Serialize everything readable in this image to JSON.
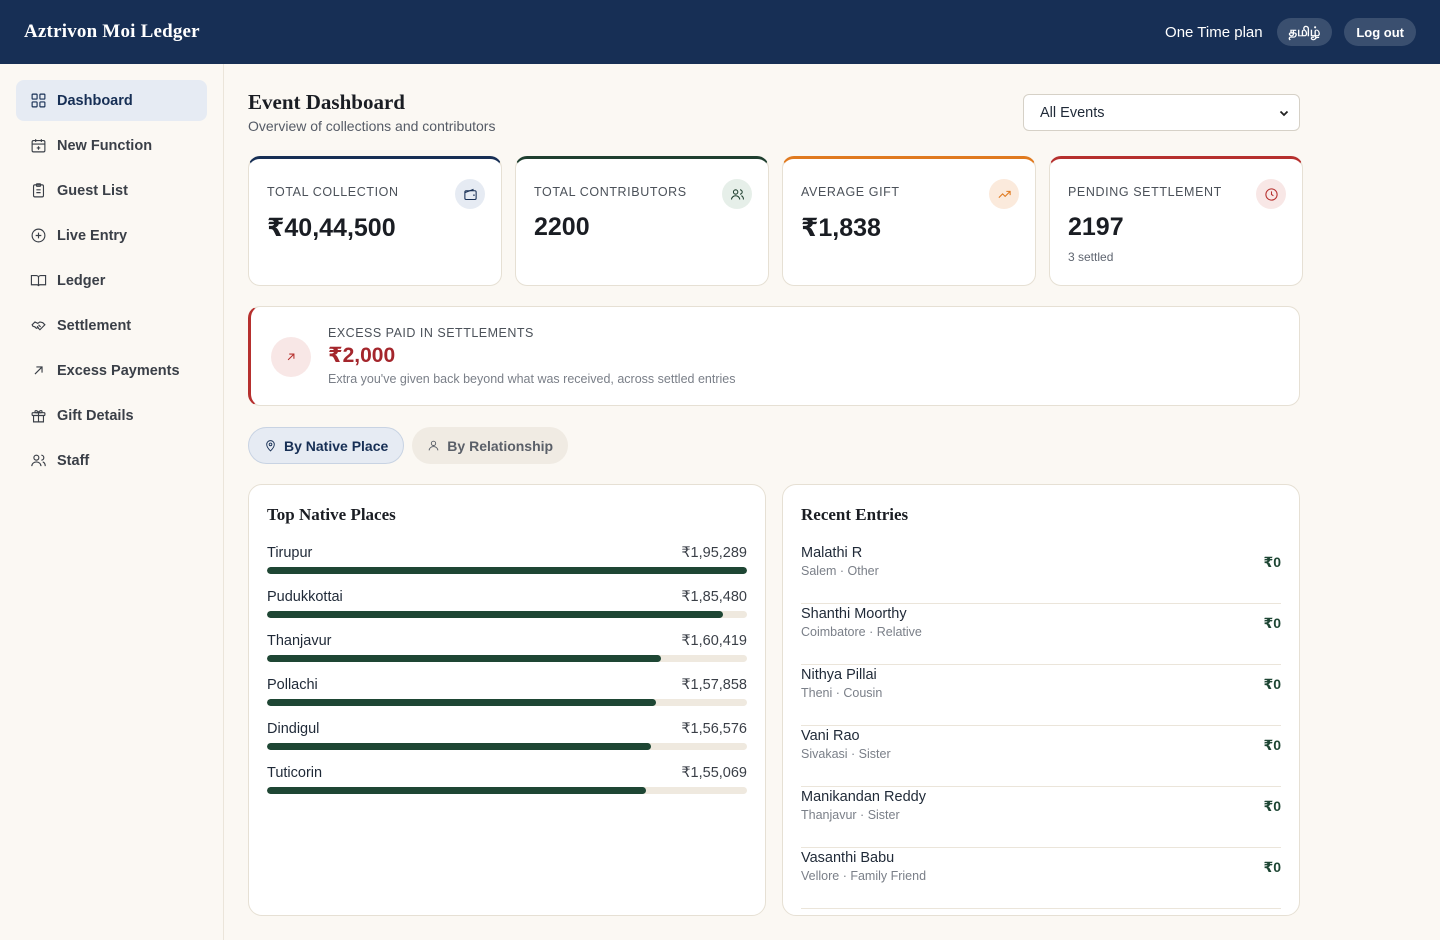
{
  "app": {
    "brand": "Aztrivon Moi Ledger",
    "plan": "One Time plan",
    "language_button": "தமிழ்",
    "logout_button": "Log out"
  },
  "sidebar": {
    "items": [
      {
        "label": "Dashboard",
        "icon": "grid-icon",
        "active": true
      },
      {
        "label": "New Function",
        "icon": "calendar-plus-icon"
      },
      {
        "label": "Guest List",
        "icon": "clipboard-icon"
      },
      {
        "label": "Live Entry",
        "icon": "plus-circle-icon"
      },
      {
        "label": "Ledger",
        "icon": "book-icon"
      },
      {
        "label": "Settlement",
        "icon": "handshake-icon"
      },
      {
        "label": "Excess Payments",
        "icon": "arrow-up-right-icon"
      },
      {
        "label": "Gift Details",
        "icon": "gift-icon"
      },
      {
        "label": "Staff",
        "icon": "users-icon"
      }
    ]
  },
  "header": {
    "title": "Event Dashboard",
    "subtitle": "Overview of collections and contributors",
    "event_select": "All Events"
  },
  "stats": [
    {
      "label": "TOTAL COLLECTION",
      "value": "₹40,44,500",
      "sub": "",
      "icon": "wallet-icon",
      "color": "#172f55"
    },
    {
      "label": "TOTAL CONTRIBUTORS",
      "value": "2200",
      "sub": "",
      "icon": "users-icon",
      "color": "#1f3f2f"
    },
    {
      "label": "AVERAGE GIFT",
      "value": "₹1,838",
      "sub": "",
      "icon": "trending-up-icon",
      "color": "#e07a1f"
    },
    {
      "label": "PENDING SETTLEMENT",
      "value": "2197",
      "sub": "3 settled",
      "icon": "clock-icon",
      "color": "#b6302e"
    }
  ],
  "excess": {
    "label": "EXCESS PAID IN SETTLEMENTS",
    "value": "₹2,000",
    "note": "Extra you've given back beyond what was received, across settled entries"
  },
  "toggles": [
    {
      "label": "By Native Place",
      "active": true
    },
    {
      "label": "By Relationship",
      "active": false
    }
  ],
  "native_places": {
    "title": "Top Native Places",
    "items": [
      {
        "name": "Tirupur",
        "amount": "₹1,95,289",
        "fraction": 1.0
      },
      {
        "name": "Pudukkottai",
        "amount": "₹1,85,480",
        "fraction": 0.95
      },
      {
        "name": "Thanjavur",
        "amount": "₹1,60,419",
        "fraction": 0.82
      },
      {
        "name": "Pollachi",
        "amount": "₹1,57,858",
        "fraction": 0.81
      },
      {
        "name": "Dindigul",
        "amount": "₹1,56,576",
        "fraction": 0.8
      },
      {
        "name": "Tuticorin",
        "amount": "₹1,55,069",
        "fraction": 0.79
      }
    ]
  },
  "recent_entries": {
    "title": "Recent Entries",
    "items": [
      {
        "name": "Malathi R",
        "meta": "Salem · Other",
        "amount": "₹0"
      },
      {
        "name": "Shanthi Moorthy",
        "meta": "Coimbatore · Relative",
        "amount": "₹0"
      },
      {
        "name": "Nithya Pillai",
        "meta": "Theni · Cousin",
        "amount": "₹0"
      },
      {
        "name": "Vani Rao",
        "meta": "Sivakasi · Sister",
        "amount": "₹0"
      },
      {
        "name": "Manikandan Reddy",
        "meta": "Thanjavur · Sister",
        "amount": "₹0"
      },
      {
        "name": "Vasanthi Babu",
        "meta": "Vellore · Family Friend",
        "amount": "₹0"
      }
    ]
  }
}
